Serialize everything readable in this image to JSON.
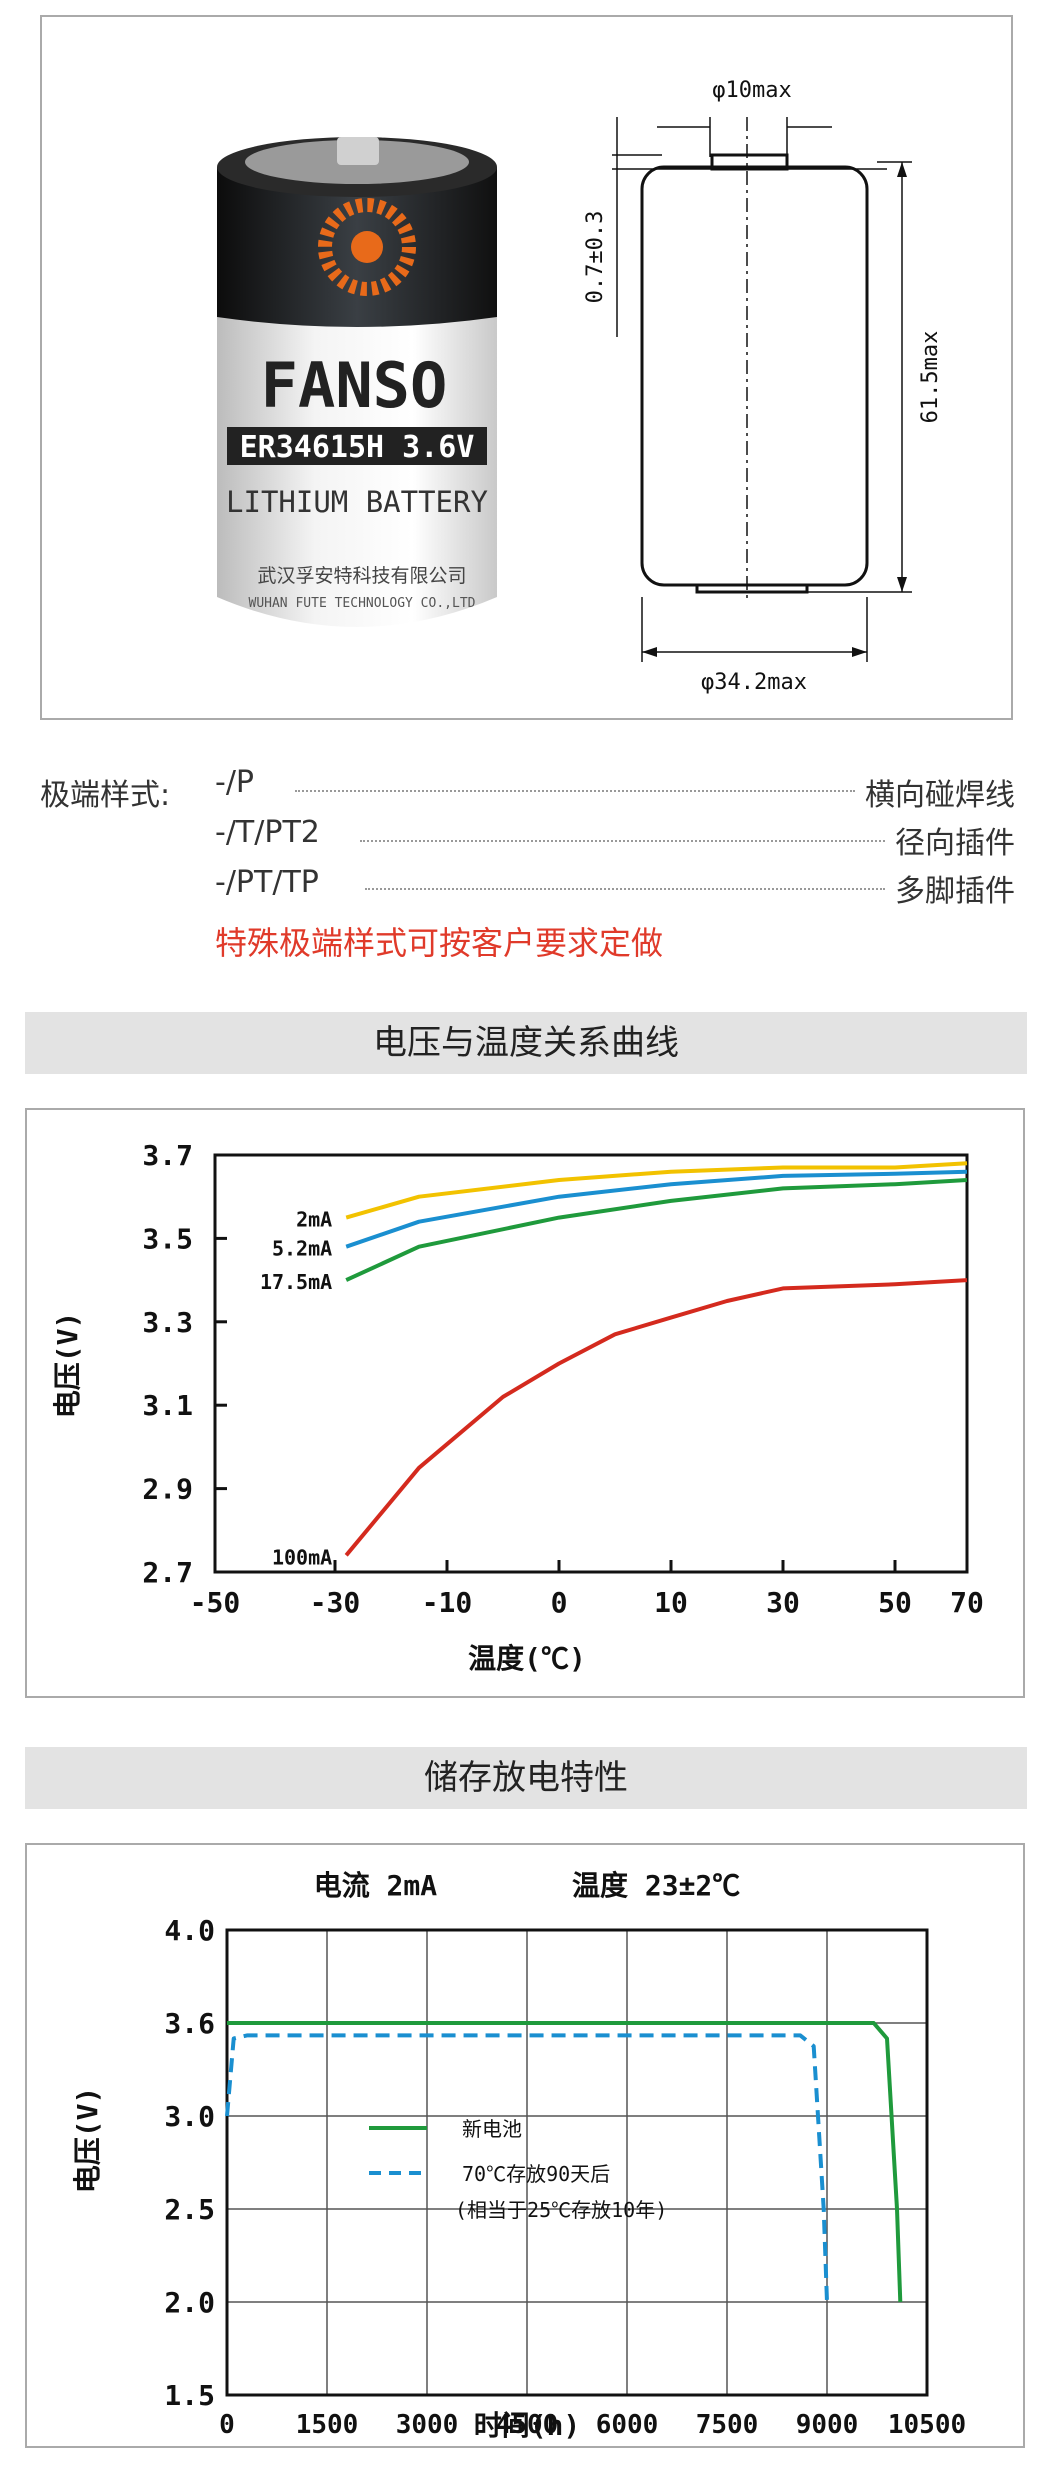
{
  "battery": {
    "brand": "FANSO",
    "model": "ER34615H 3.6V",
    "type": "LITHIUM BATTERY",
    "maker_cn": "武汉孚安特科技有限公司",
    "maker_en": "WUHAN FUTE TECHNOLOGY CO.,LTD"
  },
  "drawing": {
    "terminal_dia": "φ10max",
    "terminal_height": "0.7±0.3",
    "height": "61.5max",
    "diameter": "φ34.2max"
  },
  "terminals": {
    "label": "极端样式:",
    "rows": [
      {
        "code": "-/P",
        "desc": "横向碰焊线"
      },
      {
        "code": "-/T/PT2",
        "desc": "径向插件"
      },
      {
        "code": "-/PT/TP",
        "desc": "多脚插件"
      }
    ],
    "note": "特殊极端样式可按客户要求定做"
  },
  "section1_title": "电压与温度关系曲线",
  "section2_title": "储存放电特性",
  "chart_data": [
    {
      "type": "line",
      "xlabel": "温度(℃)",
      "ylabel": "电压(V)",
      "x_ticks": [
        "-50",
        "-30",
        "-10",
        "0",
        "10",
        "30",
        "50",
        "70"
      ],
      "y_ticks": [
        "3.7",
        "3.5",
        "3.3",
        "3.1",
        "2.9",
        "2.7"
      ],
      "ylim": [
        2.7,
        3.7
      ],
      "grid": false,
      "series": [
        {
          "name": "2mA",
          "color": "#f2c200",
          "x": [
            -28,
            -15,
            0,
            10,
            30,
            50,
            70
          ],
          "y": [
            3.55,
            3.6,
            3.64,
            3.66,
            3.67,
            3.67,
            3.68
          ]
        },
        {
          "name": "5.2mA",
          "color": "#1a8fd0",
          "x": [
            -28,
            -15,
            0,
            10,
            30,
            50,
            70
          ],
          "y": [
            3.48,
            3.54,
            3.6,
            3.63,
            3.65,
            3.655,
            3.66
          ]
        },
        {
          "name": "17.5mA",
          "color": "#1f9a3c",
          "x": [
            -28,
            -15,
            0,
            10,
            30,
            50,
            70
          ],
          "y": [
            3.4,
            3.48,
            3.55,
            3.59,
            3.62,
            3.63,
            3.64
          ]
        },
        {
          "name": "100mA",
          "color": "#d42a1e",
          "x": [
            -28,
            -15,
            -5,
            0,
            5,
            10,
            20,
            30,
            50,
            70
          ],
          "y": [
            2.74,
            2.95,
            3.12,
            3.2,
            3.27,
            3.31,
            3.35,
            3.38,
            3.39,
            3.4
          ]
        }
      ]
    },
    {
      "type": "line",
      "title": "电流 2mA        温度 23±2℃",
      "xlabel": "时间(h)",
      "ylabel": "电压(V)",
      "x_ticks": [
        "0",
        "1500",
        "3000",
        "4500",
        "6000",
        "7500",
        "9000",
        "10500"
      ],
      "y_ticks": [
        "4.0",
        "3.6",
        "3.0",
        "2.5",
        "2.0",
        "1.5"
      ],
      "xlim": [
        0,
        10500
      ],
      "grid": true,
      "series": [
        {
          "name": "新电池",
          "color": "#1f9a3c",
          "dash": "solid",
          "x": [
            0,
            9700,
            9900,
            10050,
            10100
          ],
          "y": [
            3.6,
            3.6,
            3.5,
            2.5,
            2.0
          ]
        },
        {
          "name": "70℃存放90天后",
          "color": "#1a8fd0",
          "dash": "dashed",
          "x": [
            0,
            100,
            300,
            8600,
            8800,
            8950,
            9000
          ],
          "y": [
            3.0,
            3.5,
            3.52,
            3.52,
            3.45,
            2.5,
            2.0
          ]
        }
      ],
      "legend_note": "(相当于25℃存放10年)",
      "legend_position": "lower-left"
    }
  ]
}
